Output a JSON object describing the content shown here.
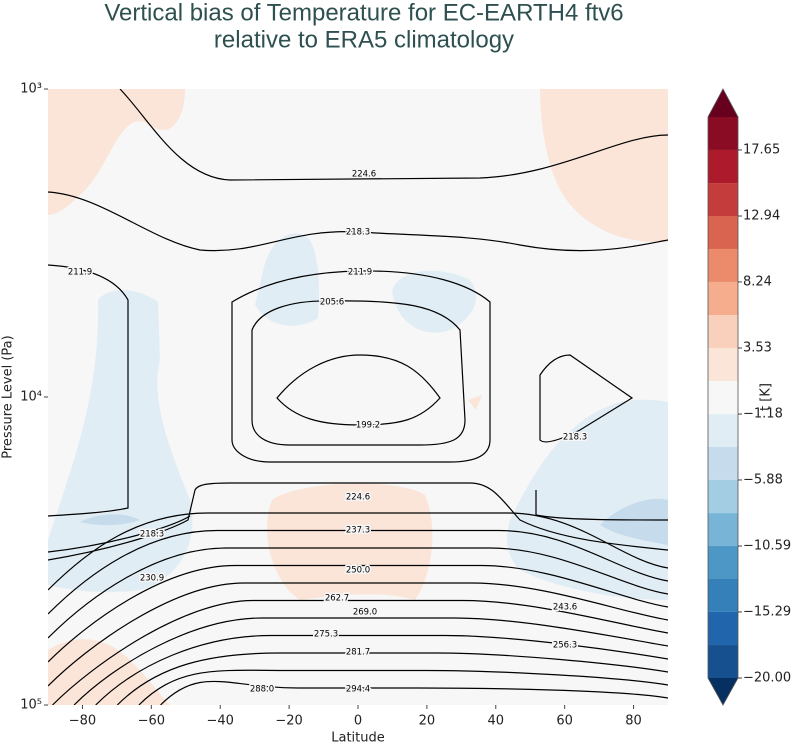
{
  "chart_data": {
    "type": "contour",
    "title": [
      "Vertical bias of Temperature for EC-EARTH4 ftv6",
      "relative to ERA5 climatology"
    ],
    "xlabel": "Latitude",
    "ylabel": "Pressure Level (Pa)",
    "xlim": [
      -90,
      90
    ],
    "xticks": [
      {
        "value": -80,
        "label": "−80"
      },
      {
        "value": -60,
        "label": "−60"
      },
      {
        "value": -40,
        "label": "−40"
      },
      {
        "value": -20,
        "label": "−20"
      },
      0,
      20,
      40,
      60,
      80
    ],
    "ylim": [
      1000,
      100000
    ],
    "yscale": "log",
    "y_inverted": true,
    "yticks": [
      {
        "value": 1000,
        "label": "10³"
      },
      {
        "value": 10000,
        "label": "10⁴"
      },
      {
        "value": 100000,
        "label": "10⁵"
      }
    ],
    "contour_color": "#000000",
    "contour_levels": [
      199.2,
      205.6,
      211.9,
      218.3,
      224.6,
      230.9,
      237.3,
      243.6,
      {
        "value": 250,
        "label": "250.0"
      },
      256.3,
      262.7,
      {
        "value": 269,
        "label": "269.0"
      },
      275.3,
      281.7,
      {
        "value": 288,
        "label": "288.0"
      },
      294.4
    ],
    "colorbar": {
      "label": "t [K]",
      "lim": [
        -20,
        20
      ],
      "bounds": [
        -20,
        -17.65,
        -15.29,
        -12.94,
        -10.59,
        -8.24,
        -5.88,
        -3.53,
        -1.18,
        1.18,
        3.53,
        5.88,
        8.24,
        10.59,
        12.94,
        15.29,
        17.65,
        20
      ],
      "colors": [
        "#16508f",
        "#2166ac",
        "#3580b9",
        "#4d97c6",
        "#78b4d6",
        "#a3cde3",
        "#c6dcec",
        "#e1edf4",
        "#f7f7f7",
        "#fbe5d9",
        "#f9d0bc",
        "#f5ad8d",
        "#eb8b6c",
        "#d9644f",
        "#c43c3c",
        "#ac1a2b",
        "#8a0b24"
      ],
      "under_color": "#053061",
      "over_color": "#67001f",
      "ticks": [
        {
          "value": -20,
          "label": "−20.00"
        },
        {
          "value": -15.29,
          "label": "−15.29"
        },
        {
          "value": -10.59,
          "label": "−10.59"
        },
        {
          "value": -5.88,
          "label": "−5.88"
        },
        {
          "value": -1.18,
          "label": "−1.18"
        },
        3.53,
        8.24,
        12.94,
        17.65
      ]
    }
  }
}
